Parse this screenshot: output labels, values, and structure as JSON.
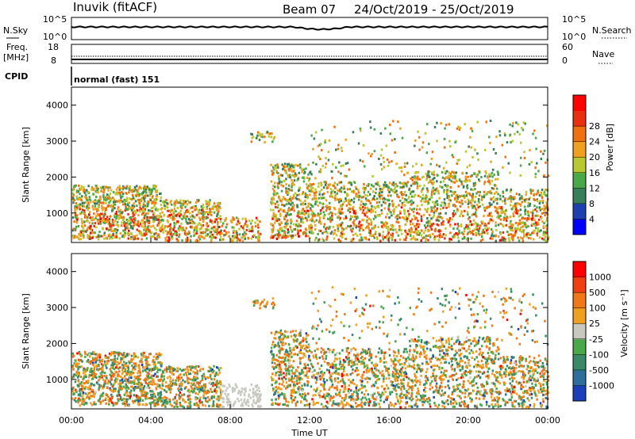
{
  "header": {
    "station": "Inuvik (fitACF)",
    "beam": "Beam 07",
    "dates": "24/Oct/2019 - 25/Oct/2019"
  },
  "sky_panel": {
    "left_label": "N.Sky",
    "right_label": "N.Search",
    "left_ticks": [
      "10^5",
      "10^0"
    ],
    "right_ticks": [
      "10^5",
      "10^0"
    ]
  },
  "freq_panel": {
    "left_label_1": "Freq.",
    "left_label_2": "[MHz]",
    "left_ticks": [
      "18",
      "8"
    ],
    "right_label": "Nave",
    "right_ticks": [
      "60",
      "0"
    ]
  },
  "cpid_panel": {
    "label": "CPID",
    "value": "normal (fast) 151"
  },
  "chart_data": [
    {
      "type": "heatmap",
      "name": "power",
      "ylabel": "Slant Range [km]",
      "ylim": [
        180,
        4500
      ],
      "yticks": [
        "1000",
        "2000",
        "3000",
        "4000"
      ],
      "ytick_values": [
        1000,
        2000,
        3000,
        4000
      ],
      "colorbar_label": "Power [dB]",
      "colorbar_ticks": [
        "4",
        "8",
        "12",
        "16",
        "20",
        "24",
        "28"
      ],
      "colorbar_colors": [
        "#0000ff",
        "#1f3fb0",
        "#3a7d5a",
        "#4aa84a",
        "#b8c830",
        "#f0a020",
        "#f07010",
        "#e83010",
        "#ff0000"
      ]
    },
    {
      "type": "heatmap",
      "name": "velocity",
      "ylabel": "Slant Range [km]",
      "ylim": [
        180,
        4500
      ],
      "yticks": [
        "1000",
        "2000",
        "3000",
        "4000"
      ],
      "ytick_values": [
        1000,
        2000,
        3000,
        4000
      ],
      "colorbar_label": "Velocity [m s⁻¹]",
      "colorbar_ticks": [
        "1000",
        "500",
        "100",
        "25",
        "-25",
        "-100",
        "-500",
        "-1000"
      ],
      "colorbar_colors": [
        "#1a3fb8",
        "#2f6e9a",
        "#3a8a6a",
        "#4aa84a",
        "#c8c8c0",
        "#f0a020",
        "#f07818",
        "#f04010",
        "#ff0000"
      ]
    }
  ],
  "xaxis": {
    "label": "Time UT",
    "ticks": [
      "00:00",
      "04:00",
      "08:00",
      "12:00",
      "16:00",
      "20:00",
      "00:00"
    ],
    "tick_hours": [
      0,
      4,
      8,
      12,
      16,
      20,
      24
    ]
  }
}
